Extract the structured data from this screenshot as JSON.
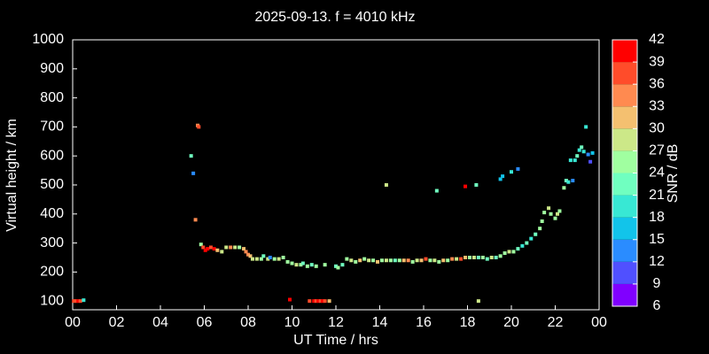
{
  "chart_data": {
    "type": "scatter",
    "title": "2025-09-13. f = 4010 kHz",
    "x_label": "UT Time / hrs",
    "y_label": "Virtual height / km",
    "x": [
      0.05,
      0.15,
      0.25,
      0.35,
      0.5,
      5.4,
      5.5,
      5.6,
      5.7,
      5.75,
      5.85,
      5.95,
      6.05,
      6.15,
      6.3,
      6.45,
      6.6,
      6.8,
      7.0,
      7.2,
      7.4,
      7.6,
      7.8,
      7.9,
      8.0,
      8.1,
      8.2,
      8.4,
      8.6,
      8.7,
      8.9,
      9.0,
      9.2,
      9.4,
      9.6,
      9.8,
      10.0,
      10.2,
      10.4,
      10.5,
      10.7,
      10.9,
      11.1,
      9.9,
      10.8,
      11.0,
      11.1,
      11.2,
      11.3,
      11.4,
      11.5,
      11.7,
      11.5,
      12.0,
      12.1,
      12.3,
      12.5,
      12.7,
      12.9,
      13.1,
      13.3,
      13.5,
      13.7,
      13.9,
      14.1,
      14.3,
      14.5,
      14.7,
      14.9,
      15.1,
      15.3,
      15.5,
      15.7,
      15.9,
      16.1,
      16.3,
      16.5,
      16.7,
      16.9,
      17.1,
      17.3,
      17.5,
      17.7,
      17.9,
      18.1,
      18.3,
      18.5,
      18.7,
      18.9,
      19.1,
      19.3,
      14.3,
      16.6,
      17.9,
      18.4,
      18.5,
      19.5,
      19.6,
      20.0,
      20.3,
      19.5,
      19.7,
      19.9,
      20.1,
      20.3,
      20.5,
      20.7,
      20.9,
      21.1,
      21.3,
      21.4,
      21.5,
      21.7,
      21.8,
      22.0,
      22.1,
      22.2,
      22.4,
      22.5,
      22.6,
      22.8,
      22.7,
      22.9,
      23.0,
      23.1,
      23.2,
      23.3,
      23.4,
      23.5,
      23.6,
      23.7
    ],
    "values": [
      100,
      100,
      100,
      100,
      103,
      600,
      540,
      380,
      705,
      700,
      295,
      285,
      275,
      280,
      285,
      280,
      275,
      270,
      285,
      285,
      285,
      285,
      280,
      270,
      260,
      255,
      245,
      245,
      245,
      255,
      245,
      250,
      245,
      245,
      250,
      235,
      230,
      225,
      225,
      230,
      220,
      225,
      220,
      105,
      100,
      100,
      100,
      100,
      100,
      100,
      100,
      100,
      225,
      220,
      215,
      225,
      245,
      240,
      235,
      240,
      245,
      240,
      240,
      235,
      240,
      240,
      240,
      240,
      240,
      240,
      240,
      235,
      240,
      240,
      245,
      240,
      240,
      235,
      240,
      240,
      245,
      245,
      245,
      250,
      250,
      250,
      250,
      250,
      245,
      250,
      250,
      500,
      480,
      495,
      500,
      100,
      520,
      530,
      545,
      555,
      255,
      265,
      270,
      270,
      280,
      290,
      300,
      315,
      330,
      350,
      375,
      405,
      420,
      400,
      385,
      400,
      410,
      490,
      515,
      510,
      515,
      585,
      585,
      600,
      620,
      630,
      615,
      700,
      605,
      580,
      610
    ],
    "snr": [
      36,
      36,
      39,
      36,
      18,
      21,
      12,
      33,
      33,
      36,
      24,
      36,
      39,
      39,
      36,
      39,
      30,
      27,
      27,
      33,
      27,
      24,
      30,
      33,
      33,
      30,
      27,
      27,
      24,
      21,
      27,
      12,
      24,
      27,
      24,
      24,
      24,
      27,
      24,
      21,
      24,
      21,
      24,
      39,
      36,
      39,
      36,
      39,
      36,
      39,
      36,
      30,
      24,
      21,
      24,
      21,
      24,
      27,
      24,
      30,
      24,
      27,
      24,
      30,
      24,
      27,
      24,
      21,
      24,
      30,
      33,
      24,
      27,
      30,
      36,
      24,
      27,
      24,
      30,
      24,
      33,
      27,
      36,
      30,
      24,
      27,
      21,
      24,
      21,
      27,
      21,
      27,
      21,
      39,
      21,
      27,
      15,
      15,
      18,
      12,
      24,
      24,
      27,
      24,
      21,
      18,
      21,
      18,
      21,
      24,
      24,
      24,
      27,
      24,
      24,
      27,
      24,
      24,
      21,
      18,
      12,
      18,
      18,
      21,
      18,
      21,
      18,
      18,
      12,
      9,
      15
    ],
    "xlim": [
      0,
      24
    ],
    "xticks": [
      {
        "value": 0,
        "label": "00"
      },
      {
        "value": 2,
        "label": "02"
      },
      {
        "value": 4,
        "label": "04"
      },
      {
        "value": 6,
        "label": "06"
      },
      {
        "value": 8,
        "label": "08"
      },
      10,
      12,
      14,
      16,
      18,
      20,
      22,
      {
        "value": 24,
        "label": "00"
      }
    ],
    "ylim": [
      70,
      1000
    ],
    "yticks": [
      100,
      200,
      300,
      400,
      500,
      600,
      700,
      800,
      900,
      1000
    ],
    "colorbar": {
      "label": "SNR / dB",
      "lim": [
        6,
        42
      ],
      "ticks": [
        6,
        9,
        12,
        15,
        18,
        21,
        24,
        27,
        30,
        33,
        36,
        39,
        42
      ],
      "colors": [
        "#8000ff",
        "#5050ff",
        "#2a8cff",
        "#12c4ea",
        "#38e8d4",
        "#70ffc0",
        "#a0ffa0",
        "#cce888",
        "#f4c070",
        "#ff8a50",
        "#ff4c2a",
        "#ff0000"
      ]
    }
  }
}
